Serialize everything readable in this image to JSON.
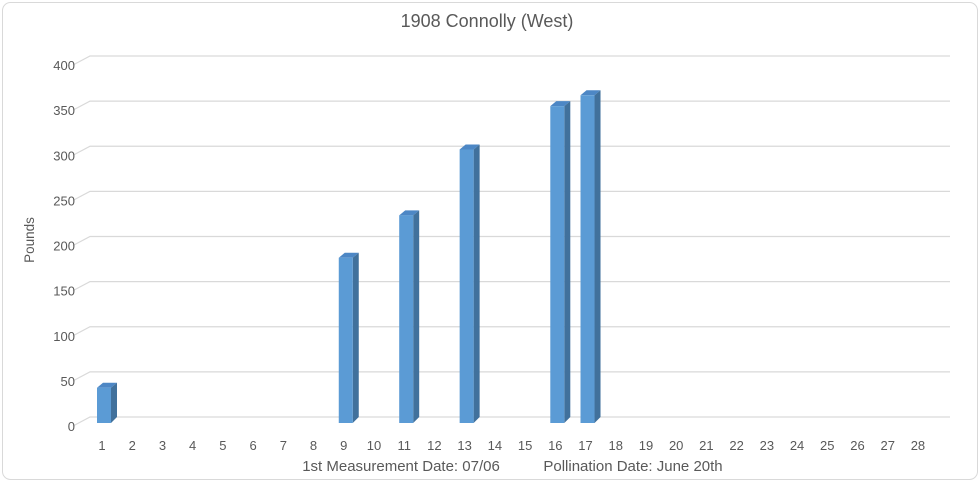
{
  "chart_data": {
    "type": "bar",
    "style": "3d-column",
    "title": "1908 Connolly (West)",
    "ylabel": "Pounds",
    "xlabel_left": "1st Measurement Date: 07/06",
    "xlabel_right": "Pollination Date: June 20th",
    "categories": [
      1,
      2,
      3,
      4,
      5,
      6,
      7,
      8,
      9,
      10,
      11,
      12,
      13,
      14,
      15,
      16,
      17,
      18,
      19,
      20,
      21,
      22,
      23,
      24,
      25,
      26,
      27,
      28
    ],
    "values": [
      38,
      0,
      0,
      0,
      0,
      0,
      0,
      0,
      182,
      0,
      229,
      0,
      302,
      0,
      0,
      350,
      362,
      0,
      0,
      0,
      0,
      0,
      0,
      0,
      0,
      0,
      0,
      0
    ],
    "ylim": [
      0,
      400
    ],
    "ytick_step": 50,
    "yticks": [
      400,
      350,
      300,
      250,
      200,
      150,
      100,
      50,
      0
    ],
    "grid": true,
    "legend": "none",
    "colors": {
      "bar_front": "#5B9BD5",
      "bar_side": "#41719C",
      "bar_top": "#4D87C5",
      "grid": "#D9D9D9",
      "border": "#D9D9D9",
      "text": "#595959",
      "background": "#FFFFFF"
    }
  }
}
